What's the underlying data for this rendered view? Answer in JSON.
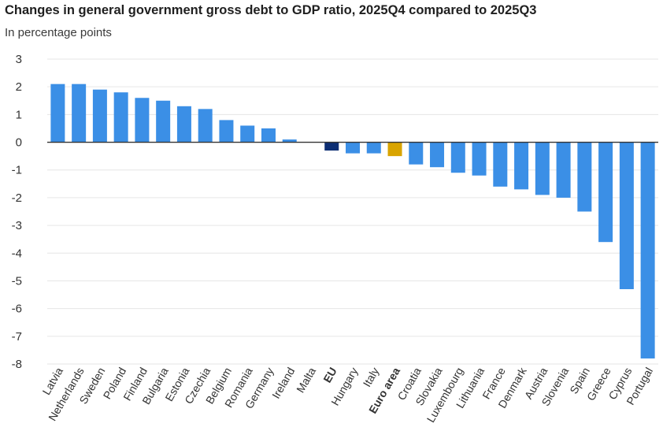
{
  "title": "Changes in general government gross debt to GDP ratio, 2025Q4 compared to 2025Q3",
  "subtitle": "In percentage points",
  "colors": {
    "country": "#3b8fe6",
    "eu": "#0d2e73",
    "euro_area": "#d9a400",
    "grid": "#e6e6e6",
    "axis": "#333333"
  },
  "chart_data": {
    "type": "bar",
    "title": "Changes in general government gross debt to GDP ratio, 2025Q4 compared to 2025Q3",
    "subtitle": "In percentage points",
    "xlabel": "",
    "ylabel": "",
    "ylim": [
      -8,
      3
    ],
    "yticks": [
      "3",
      "2",
      "1",
      "0",
      "-1",
      "-2",
      "-3",
      "-4",
      "-5",
      "-6",
      "-7",
      "-8"
    ],
    "grid": true,
    "legend": "none",
    "categories": [
      "Latvia",
      "Netherlands",
      "Sweden",
      "Poland",
      "Finland",
      "Bulgaria",
      "Estonia",
      "Czechia",
      "Belgium",
      "Romania",
      "Germany",
      "Ireland",
      "Malta",
      "EU",
      "Hungary",
      "Italy",
      "Euro area",
      "Croatia",
      "Slovakia",
      "Luxembourg",
      "Lithuania",
      "France",
      "Denmark",
      "Austria",
      "Slovenia",
      "Spain",
      "Greece",
      "Cyprus",
      "Portugal"
    ],
    "values": [
      2.1,
      2.1,
      1.9,
      1.8,
      1.6,
      1.5,
      1.3,
      1.2,
      0.8,
      0.6,
      0.5,
      0.1,
      0.0,
      -0.3,
      -0.4,
      -0.4,
      -0.5,
      -0.8,
      -0.9,
      -1.1,
      -1.2,
      -1.6,
      -1.7,
      -1.9,
      -2.0,
      -2.5,
      -3.6,
      -5.3,
      -7.8
    ],
    "bar_groups": [
      "country",
      "country",
      "country",
      "country",
      "country",
      "country",
      "country",
      "country",
      "country",
      "country",
      "country",
      "country",
      "country",
      "eu",
      "country",
      "country",
      "euro_area",
      "country",
      "country",
      "country",
      "country",
      "country",
      "country",
      "country",
      "country",
      "country",
      "country",
      "country",
      "country"
    ],
    "bold_categories": [
      "EU",
      "Euro area"
    ]
  }
}
